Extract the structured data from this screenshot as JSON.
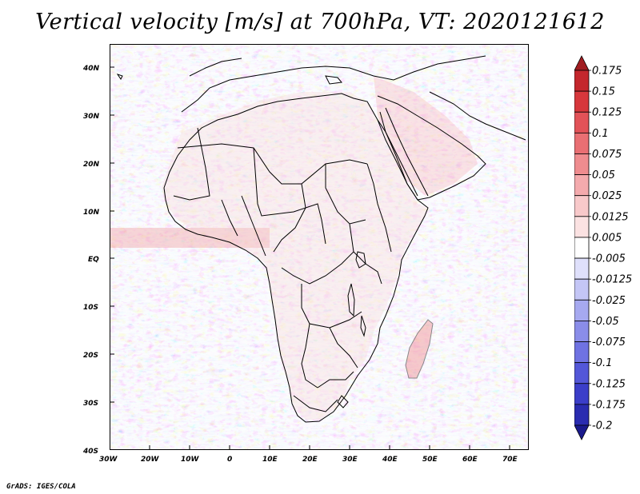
{
  "title": "Vertical velocity [m/s] at 700hPa, VT: 2020121612",
  "credit": "GrADS: IGES/COLA",
  "map": {
    "lon_labels": [
      "30W",
      "20W",
      "10W",
      "0",
      "10E",
      "20E",
      "30E",
      "40E",
      "50E",
      "60E",
      "70E"
    ],
    "lat_labels": [
      "40N",
      "30N",
      "20N",
      "10N",
      "EQ",
      "10S",
      "20S",
      "30S",
      "40S"
    ],
    "lon_range": [
      -30,
      75
    ],
    "lat_range": [
      -40,
      45
    ]
  },
  "colorbar": {
    "levels": [
      "0.175",
      "0.15",
      "0.125",
      "0.1",
      "0.075",
      "0.05",
      "0.025",
      "0.0125",
      "0.005",
      "-0.005",
      "-0.0125",
      "-0.025",
      "-0.05",
      "-0.075",
      "-0.1",
      "-0.125",
      "-0.175",
      "-0.2"
    ],
    "colors": [
      "#a11d21",
      "#c4272d",
      "#d7373c",
      "#e25258",
      "#e96f73",
      "#ef8c8f",
      "#f4aaad",
      "#f8c9ca",
      "#fbe2e2",
      "#ffffff",
      "#dfe0fb",
      "#c4c6f6",
      "#a6a9f0",
      "#8a8de9",
      "#6f72e2",
      "#5357d8",
      "#3b3ec9",
      "#2a2cb0",
      "#1a1a8c"
    ]
  }
}
